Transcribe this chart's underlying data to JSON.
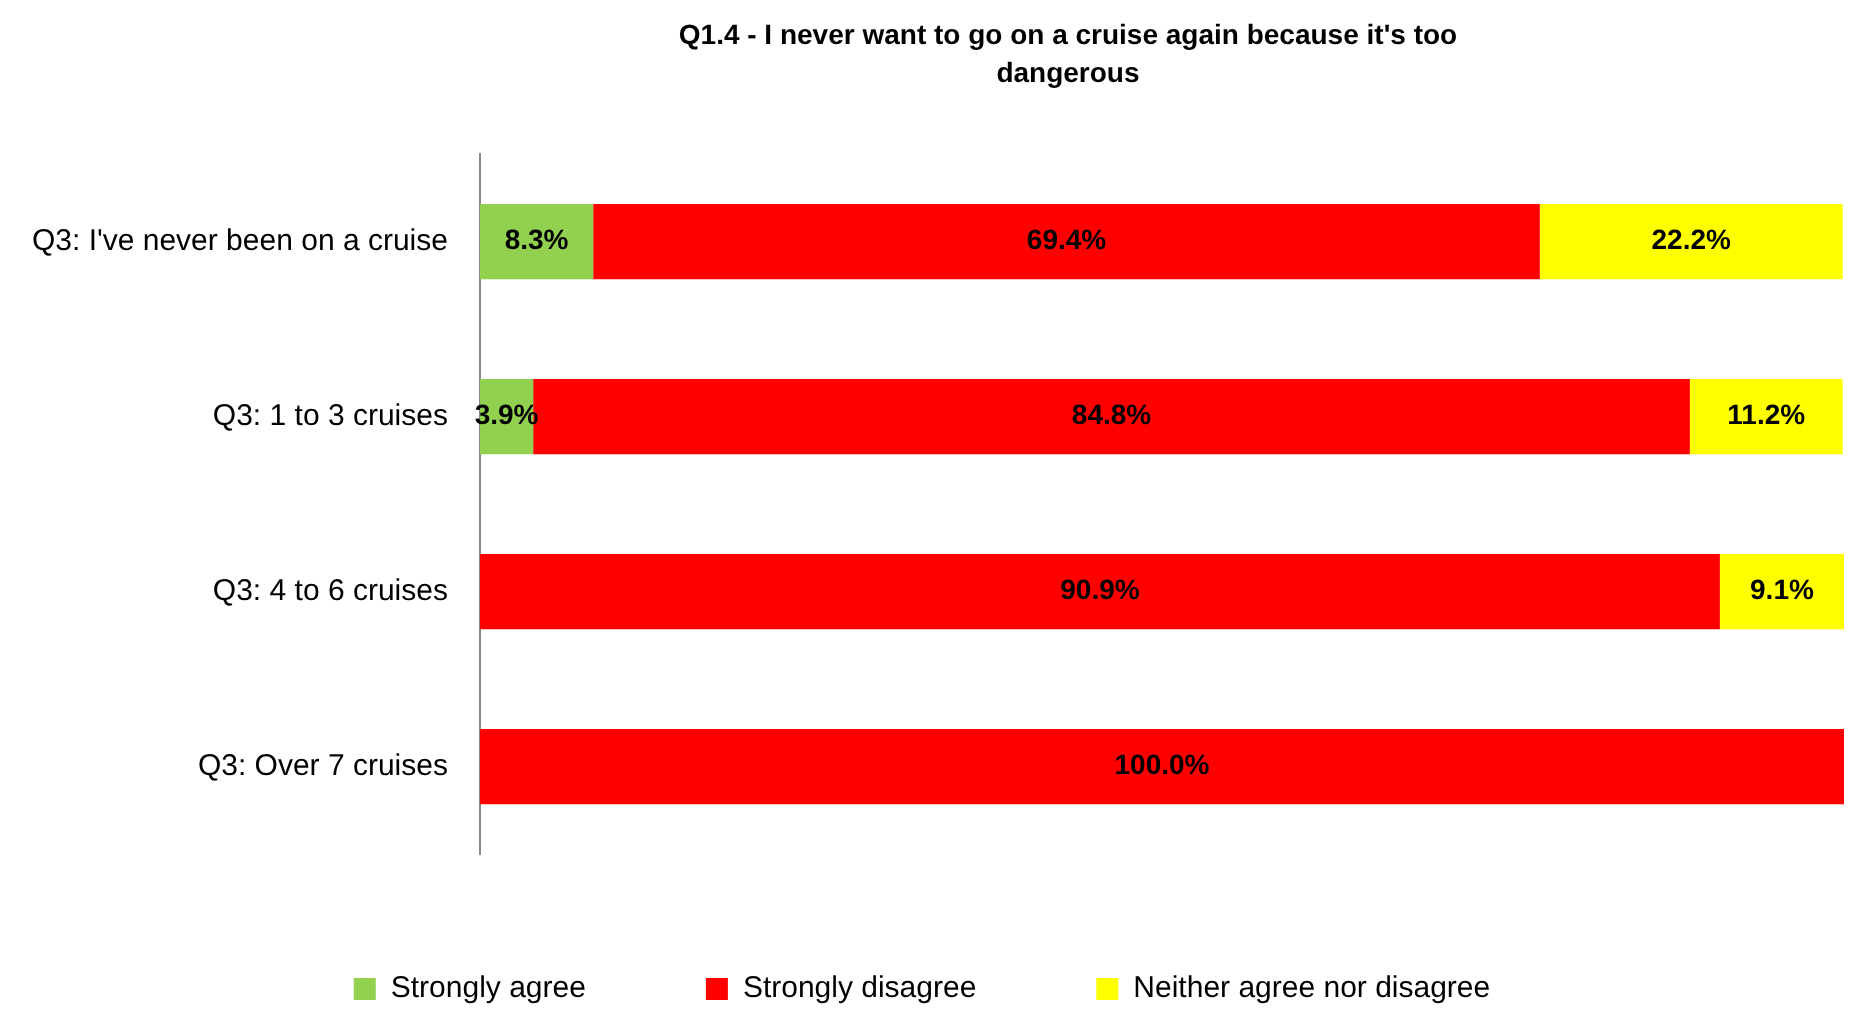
{
  "chart_data": {
    "type": "bar",
    "orientation": "horizontal",
    "stacked": true,
    "title": "Q1.4 - I never want to go on a cruise again because it's too dangerous",
    "categories": [
      "Q3: I've never been on a cruise",
      "Q3: 1 to 3 cruises",
      "Q3: 4 to 6 cruises",
      "Q3: Over 7 cruises"
    ],
    "series": [
      {
        "name": "Strongly agree",
        "color": "#92d050",
        "values": [
          8.3,
          3.9,
          null,
          null
        ],
        "value_labels": [
          "8.3%",
          "3.9%",
          null,
          null
        ]
      },
      {
        "name": "Strongly disagree",
        "color": "#ff0000",
        "values": [
          69.4,
          84.8,
          90.9,
          100.0
        ],
        "value_labels": [
          "69.4%",
          "84.8%",
          "90.9%",
          "100.0%"
        ]
      },
      {
        "name": "Neither agree nor disagree",
        "color": "#ffff00",
        "values": [
          22.2,
          11.2,
          9.1,
          null
        ],
        "value_labels": [
          "22.2%",
          "11.2%",
          "9.1%",
          null
        ]
      }
    ],
    "legend": "bottom",
    "grid": false
  }
}
